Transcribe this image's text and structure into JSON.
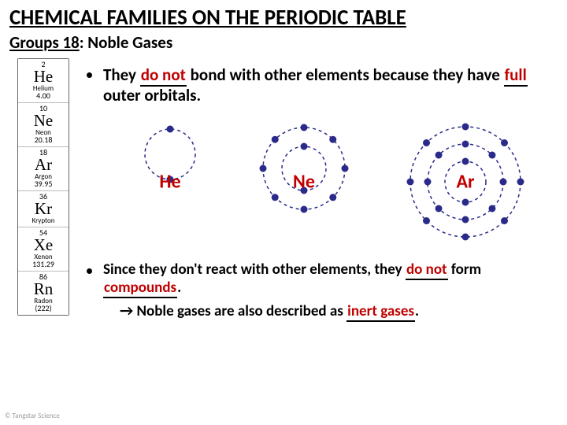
{
  "title": "CHEMICAL FAMILIES ON THE PERIODIC TABLE",
  "subtitle_group": "Groups 18",
  "subtitle_rest": ": Noble Gases",
  "periodic_column": [
    {
      "num": "2",
      "sym": "He",
      "name": "Helium",
      "mass": "4.00"
    },
    {
      "num": "10",
      "sym": "Ne",
      "name": "Neon",
      "mass": "20.18"
    },
    {
      "num": "18",
      "sym": "Ar",
      "name": "Argon",
      "mass": "39.95"
    },
    {
      "num": "36",
      "sym": "Kr",
      "name": "Krypton",
      "mass": ""
    },
    {
      "num": "54",
      "sym": "Xe",
      "name": "Xenon",
      "mass": "131.29"
    },
    {
      "num": "86",
      "sym": "Rn",
      "name": "Radon",
      "mass": "(222)"
    }
  ],
  "bullet1": {
    "t1": "They ",
    "blank1": "do not",
    "t2": " bond with other elements because they have ",
    "blank2": "full",
    "t3": " outer orbitals."
  },
  "atoms": [
    {
      "label": "He",
      "size": 86,
      "shells": [
        {
          "r": 32,
          "count": 2
        }
      ],
      "color_ring": "#2a2a8a",
      "color_electron": "#2a2a8a"
    },
    {
      "label": "Ne",
      "size": 122,
      "shells": [
        {
          "r": 28,
          "count": 2
        },
        {
          "r": 52,
          "count": 8
        }
      ],
      "color_ring": "#2a2a8a",
      "color_electron": "#2a2a8a"
    },
    {
      "label": "Ar",
      "size": 156,
      "shells": [
        {
          "r": 26,
          "count": 2
        },
        {
          "r": 48,
          "count": 8
        },
        {
          "r": 70,
          "count": 8
        }
      ],
      "color_ring": "#2a2a8a",
      "color_electron": "#2a2a8a"
    }
  ],
  "bullet2": {
    "t1": "Since they don't react with other elements, they ",
    "blank1": "do not",
    "t2": " form ",
    "blank2": "compounds",
    "t3": "."
  },
  "arrowline": {
    "arrow": "→",
    "t1": " Noble gases are also described as ",
    "blank1": "inert gases",
    "t2": "."
  },
  "copyright": "© Tangstar Science",
  "style": {
    "blank_color": "#c00000",
    "title_fontsize": 27,
    "body_fontsize": 21,
    "electron_radius": 4.5,
    "ring_dash": "4 4"
  }
}
